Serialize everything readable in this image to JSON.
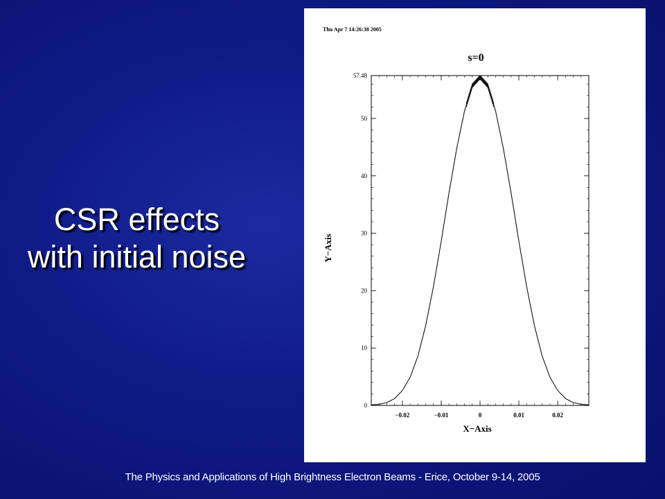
{
  "slide": {
    "title_line1": "CSR effects",
    "title_line2": "with initial noise",
    "footer": "The Physics and Applications of High Brightness Electron Beams - Erice, October 9-14, 2005",
    "colors": {
      "background": "#0f1a86",
      "text": "#ffffff"
    }
  },
  "figure": {
    "timestamp": "Thu Apr  7 14:26:38 2005"
  },
  "chart_data": {
    "type": "line",
    "title": "s=0",
    "xlabel": "X−Axis",
    "ylabel": "Y−Axis",
    "xlim": [
      -0.028,
      0.028
    ],
    "ylim": [
      0,
      57.48
    ],
    "x_ticks": [
      {
        "value": -0.02,
        "label": "−0.02"
      },
      {
        "value": -0.01,
        "label": "−0.01"
      },
      {
        "value": 0,
        "label": "0"
      },
      {
        "value": 0.01,
        "label": "0.01"
      },
      {
        "value": 0.02,
        "label": "0.02"
      }
    ],
    "y_ticks": [
      {
        "value": 0,
        "label": "0"
      },
      {
        "value": 10,
        "label": "10"
      },
      {
        "value": 20,
        "label": "20"
      },
      {
        "value": 30,
        "label": "30"
      },
      {
        "value": 40,
        "label": "40"
      },
      {
        "value": 50,
        "label": "50"
      },
      {
        "value": 57.48,
        "label": "57.48"
      }
    ],
    "grid": false,
    "series": [
      {
        "x": [
          -0.028,
          -0.026,
          -0.024,
          -0.022,
          -0.02,
          -0.018,
          -0.016,
          -0.014,
          -0.012,
          -0.01,
          -0.008,
          -0.006,
          -0.004,
          -0.002,
          0,
          0.002,
          0.004,
          0.006,
          0.008,
          0.01,
          0.012,
          0.014,
          0.016,
          0.018,
          0.02,
          0.022,
          0.024,
          0.026,
          0.028
        ],
        "y": [
          0.1,
          0.2,
          0.5,
          1.2,
          2.6,
          4.9,
          8.6,
          13.9,
          20.7,
          28.6,
          37.0,
          44.8,
          51.3,
          55.7,
          57.2,
          55.7,
          51.3,
          44.8,
          37.0,
          28.6,
          20.7,
          13.9,
          8.6,
          4.9,
          2.6,
          1.2,
          0.5,
          0.2,
          0.1
        ]
      }
    ]
  }
}
